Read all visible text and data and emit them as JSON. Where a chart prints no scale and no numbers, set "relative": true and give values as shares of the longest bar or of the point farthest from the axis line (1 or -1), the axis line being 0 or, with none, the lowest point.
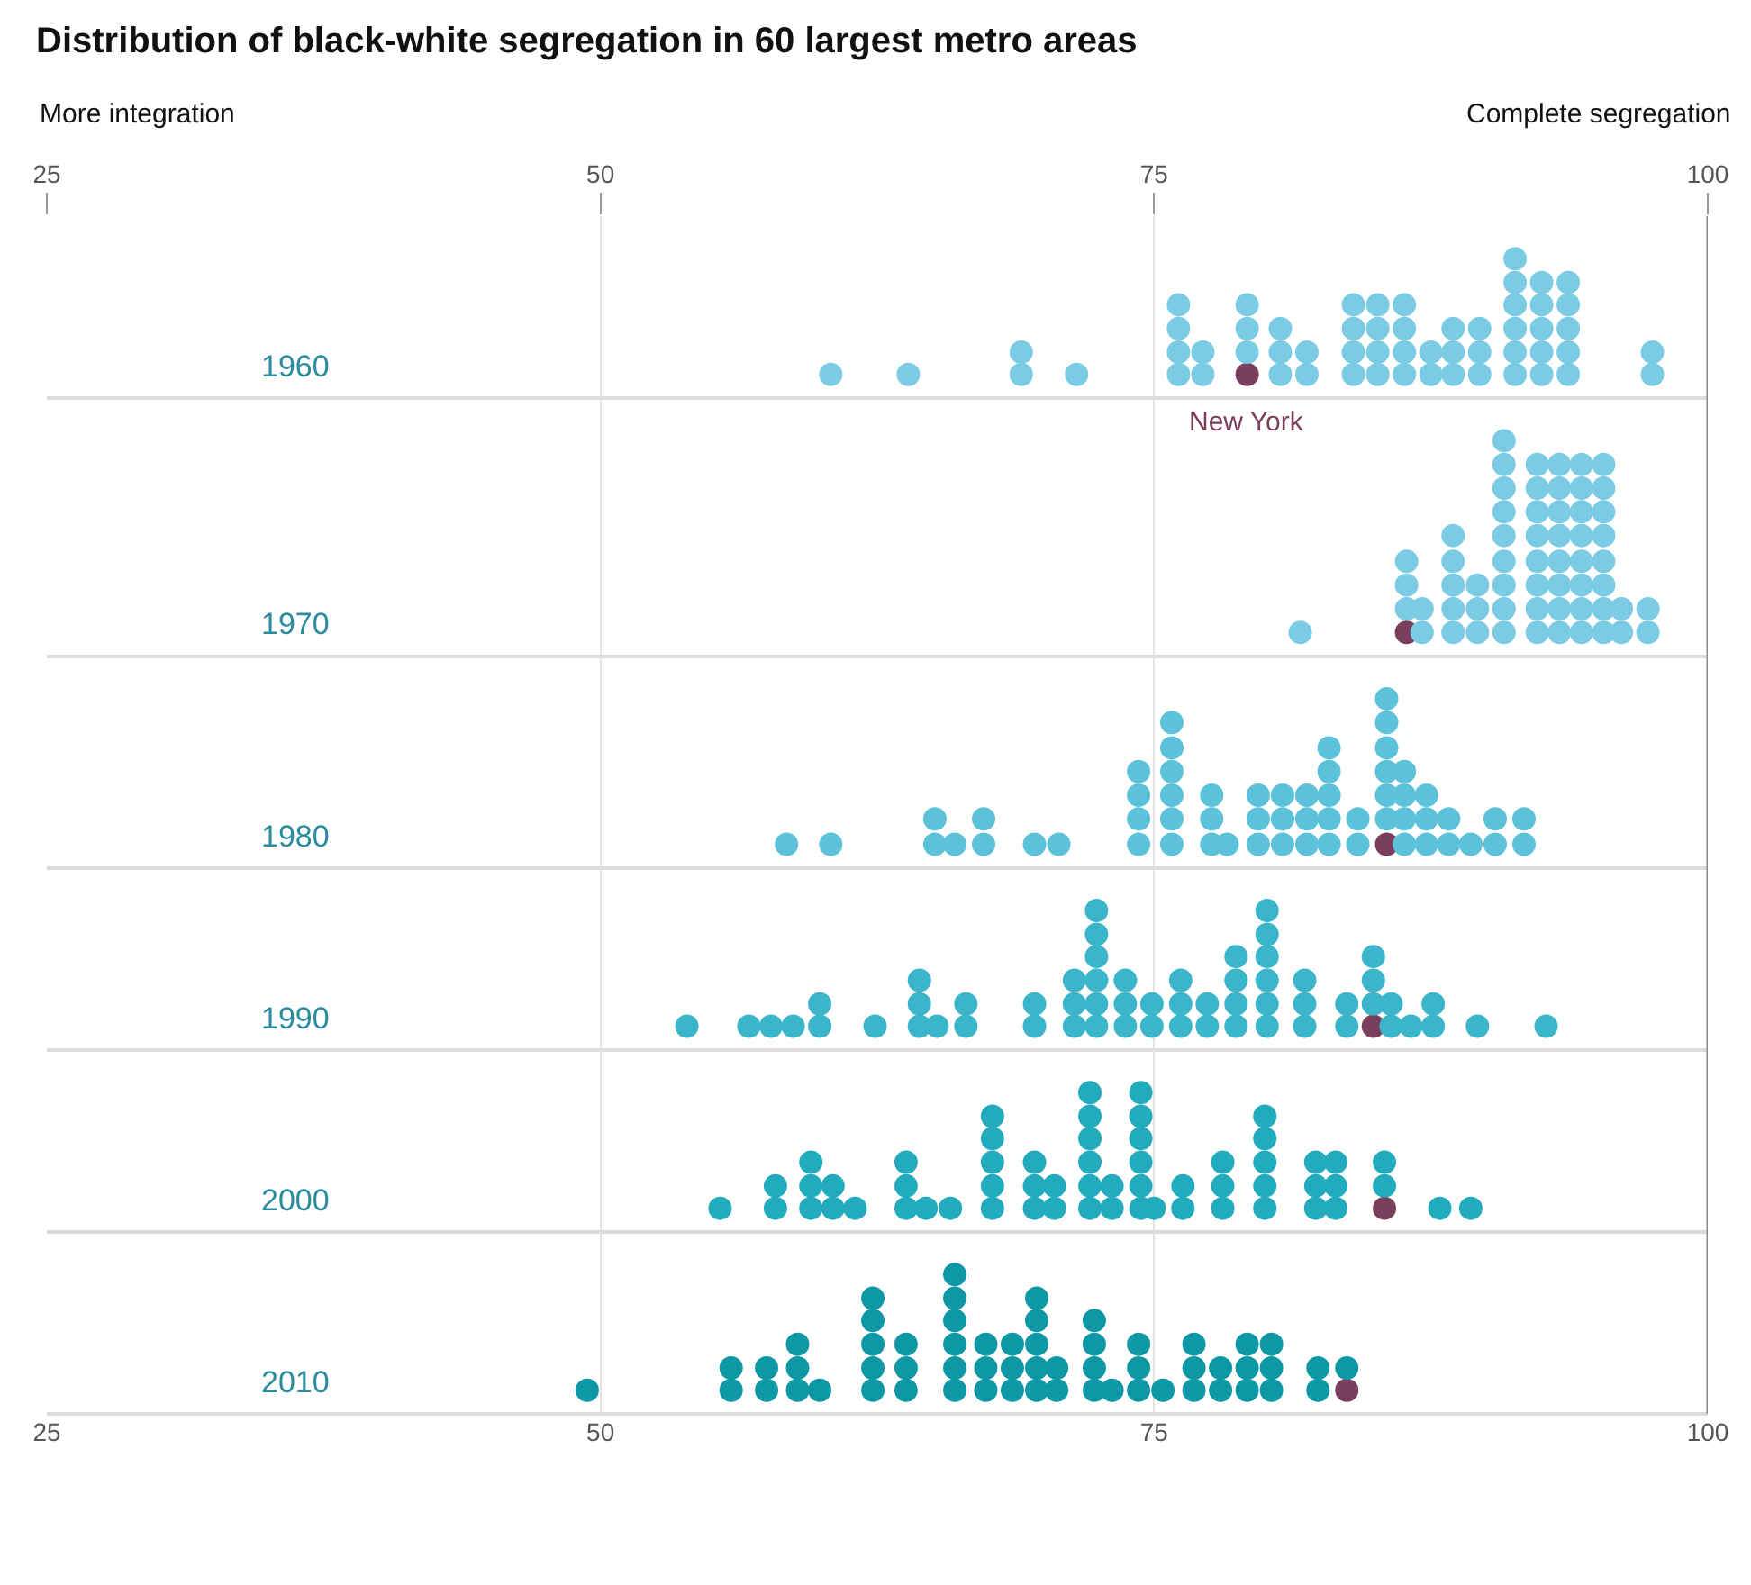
{
  "chart_data": [
    {
      "type": "scatter",
      "title": "Distribution of black-white segregation in 60 largest metro areas",
      "ylabel": "1960",
      "relative": true,
      "xlim": [
        25,
        100
      ],
      "xticks": [
        25,
        50,
        75,
        100
      ],
      "tick_labels": "x",
      "grid": "x",
      "marker": "circle",
      "ref_lines": [
        {
          "axis": "x",
          "value": 100,
          "color": "#8a8a8a"
        }
      ],
      "annotations": [
        "More integration",
        "Complete segregation",
        {
          "text": "New York",
          "x": 79.2,
          "y": 0.17
        }
      ],
      "series": [
        {
          "color": "#7b3f5e",
          "x": [
            79.2
          ],
          "values": [
            0.17
          ]
        },
        {
          "color": "#7ccbe5",
          "x": [
            60.4,
            63.9,
            69.0,
            69.0,
            71.5,
            76.1,
            76.1,
            76.1,
            76.1,
            77.2,
            77.2,
            79.2,
            79.2,
            79.2,
            80.7,
            80.7,
            80.7,
            81.9,
            81.9,
            84.0,
            84.0,
            84.0,
            84.0,
            85.1,
            85.1,
            85.1,
            85.1,
            86.3,
            86.3,
            86.3,
            86.3,
            87.5,
            87.5,
            88.5,
            88.5,
            88.5,
            89.7,
            89.7,
            89.7,
            91.3,
            91.3,
            91.3,
            91.3,
            91.3,
            91.3,
            92.5,
            92.5,
            92.5,
            92.5,
            92.5,
            93.7,
            93.7,
            93.7,
            93.7,
            93.7,
            97.5,
            97.5
          ],
          "values": [
            0.17,
            0.17,
            0.17,
            0.33,
            0.17,
            0.17,
            0.33,
            0.5,
            0.67,
            0.17,
            0.33,
            0.33,
            0.5,
            0.67,
            0.17,
            0.33,
            0.5,
            0.17,
            0.33,
            0.17,
            0.33,
            0.5,
            0.67,
            0.17,
            0.33,
            0.5,
            0.67,
            0.17,
            0.33,
            0.5,
            0.67,
            0.17,
            0.33,
            0.17,
            0.33,
            0.5,
            0.17,
            0.33,
            0.5,
            0.17,
            0.33,
            0.5,
            0.67,
            0.83,
            1,
            0.17,
            0.33,
            0.5,
            0.67,
            0.83,
            0.17,
            0.33,
            0.5,
            0.67,
            0.83,
            0.17,
            0.33
          ]
        }
      ]
    },
    {
      "type": "scatter",
      "ylabel": "1970",
      "relative": true,
      "xlim": [
        25,
        100
      ],
      "xticks": [
        25,
        50,
        75,
        100
      ],
      "tick_labels": false,
      "grid": "x",
      "marker": "circle",
      "ref_lines": [
        {
          "axis": "x",
          "value": 100,
          "color": "#8a8a8a"
        }
      ],
      "series": [
        {
          "color": "#7b3f5e",
          "x": [
            86.4
          ],
          "values": [
            0.11
          ]
        },
        {
          "color": "#7ccbe5",
          "x": [
            81.6,
            86.4,
            86.4,
            86.4,
            87.1,
            87.1,
            88.5,
            88.5,
            88.5,
            88.5,
            88.5,
            89.6,
            89.6,
            89.6,
            90.8,
            90.8,
            90.8,
            90.8,
            90.8,
            90.8,
            90.8,
            90.8,
            90.8,
            92.3,
            92.3,
            92.3,
            92.3,
            92.3,
            92.3,
            92.3,
            92.3,
            93.3,
            93.3,
            93.3,
            93.3,
            93.3,
            93.3,
            93.3,
            93.3,
            94.3,
            94.3,
            94.3,
            94.3,
            94.3,
            94.3,
            94.3,
            94.3,
            95.3,
            95.3,
            95.3,
            95.3,
            95.3,
            95.3,
            95.3,
            95.3,
            96.1,
            96.1,
            97.3,
            97.3
          ],
          "values": [
            0.11,
            0.22,
            0.33,
            0.44,
            0.11,
            0.22,
            0.11,
            0.22,
            0.33,
            0.44,
            0.56,
            0.11,
            0.22,
            0.33,
            0.11,
            0.22,
            0.33,
            0.44,
            0.56,
            0.67,
            0.78,
            0.89,
            1,
            0.11,
            0.22,
            0.33,
            0.44,
            0.56,
            0.67,
            0.78,
            0.89,
            0.11,
            0.22,
            0.33,
            0.44,
            0.56,
            0.67,
            0.78,
            0.89,
            0.11,
            0.22,
            0.33,
            0.44,
            0.56,
            0.67,
            0.78,
            0.89,
            0.11,
            0.22,
            0.33,
            0.44,
            0.56,
            0.67,
            0.78,
            0.89,
            0.11,
            0.22,
            0.11,
            0.22
          ]
        }
      ]
    },
    {
      "type": "scatter",
      "ylabel": "1980",
      "relative": true,
      "xlim": [
        25,
        100
      ],
      "xticks": [
        25,
        50,
        75,
        100
      ],
      "tick_labels": false,
      "grid": "x",
      "marker": "circle",
      "ref_lines": [
        {
          "axis": "x",
          "value": 100,
          "color": "#8a8a8a"
        }
      ],
      "series": [
        {
          "color": "#7b3f5e",
          "x": [
            85.5
          ],
          "values": [
            0.14
          ]
        },
        {
          "color": "#5cc2d9",
          "x": [
            58.4,
            60.4,
            65.1,
            65.1,
            66.0,
            67.3,
            67.3,
            69.6,
            70.7,
            74.3,
            74.3,
            74.3,
            74.3,
            75.8,
            75.8,
            75.8,
            75.8,
            75.8,
            75.8,
            77.6,
            77.6,
            77.6,
            78.3,
            79.7,
            79.7,
            79.7,
            80.8,
            80.8,
            80.8,
            81.9,
            81.9,
            81.9,
            82.9,
            82.9,
            82.9,
            82.9,
            82.9,
            84.2,
            84.2,
            85.5,
            85.5,
            85.5,
            85.5,
            85.5,
            85.5,
            86.3,
            86.3,
            86.3,
            86.3,
            87.3,
            87.3,
            87.3,
            88.3,
            88.3,
            89.3,
            90.4,
            90.4,
            91.7,
            91.7
          ],
          "values": [
            0.14,
            0.14,
            0.14,
            0.29,
            0.14,
            0.14,
            0.29,
            0.14,
            0.14,
            0.14,
            0.29,
            0.43,
            0.57,
            0.14,
            0.29,
            0.43,
            0.57,
            0.71,
            0.86,
            0.14,
            0.29,
            0.43,
            0.14,
            0.14,
            0.29,
            0.43,
            0.14,
            0.29,
            0.43,
            0.14,
            0.29,
            0.43,
            0.14,
            0.29,
            0.43,
            0.57,
            0.71,
            0.14,
            0.29,
            0.29,
            0.43,
            0.57,
            0.71,
            0.86,
            1,
            0.14,
            0.29,
            0.43,
            0.57,
            0.14,
            0.29,
            0.43,
            0.14,
            0.29,
            0.14,
            0.14,
            0.29,
            0.14,
            0.29
          ]
        }
      ]
    },
    {
      "type": "scatter",
      "ylabel": "1990",
      "relative": true,
      "xlim": [
        25,
        100
      ],
      "xticks": [
        25,
        50,
        75,
        100
      ],
      "tick_labels": false,
      "grid": "x",
      "marker": "circle",
      "ref_lines": [
        {
          "axis": "x",
          "value": 100,
          "color": "#8a8a8a"
        }
      ],
      "series": [
        {
          "color": "#7b3f5e",
          "x": [
            84.9
          ],
          "values": [
            0.17
          ]
        },
        {
          "color": "#3ab5c9",
          "x": [
            53.9,
            56.7,
            57.7,
            58.7,
            59.9,
            59.9,
            62.4,
            64.4,
            64.4,
            64.4,
            65.2,
            66.5,
            66.5,
            69.6,
            69.6,
            71.4,
            71.4,
            71.4,
            72.4,
            72.4,
            72.4,
            72.4,
            72.4,
            72.4,
            73.7,
            73.7,
            73.7,
            74.9,
            74.9,
            76.2,
            76.2,
            76.2,
            77.4,
            77.4,
            78.7,
            78.7,
            78.7,
            78.7,
            80.1,
            80.1,
            80.1,
            80.1,
            80.1,
            80.1,
            81.8,
            81.8,
            81.8,
            83.7,
            83.7,
            84.9,
            84.9,
            84.9,
            85.7,
            85.7,
            86.6,
            87.6,
            87.6,
            89.6,
            92.7
          ],
          "values": [
            0.17,
            0.17,
            0.17,
            0.17,
            0.17,
            0.33,
            0.17,
            0.17,
            0.33,
            0.5,
            0.17,
            0.17,
            0.33,
            0.17,
            0.33,
            0.17,
            0.33,
            0.5,
            0.17,
            0.33,
            0.5,
            0.67,
            0.83,
            1,
            0.17,
            0.33,
            0.5,
            0.17,
            0.33,
            0.17,
            0.33,
            0.5,
            0.17,
            0.33,
            0.17,
            0.33,
            0.5,
            0.67,
            0.17,
            0.33,
            0.5,
            0.67,
            0.83,
            1,
            0.17,
            0.33,
            0.5,
            0.17,
            0.33,
            0.33,
            0.5,
            0.67,
            0.17,
            0.33,
            0.17,
            0.17,
            0.33,
            0.17,
            0.17
          ]
        }
      ]
    },
    {
      "type": "scatter",
      "ylabel": "2000",
      "relative": true,
      "xlim": [
        25,
        100
      ],
      "xticks": [
        25,
        50,
        75,
        100
      ],
      "tick_labels": false,
      "grid": "x",
      "marker": "circle",
      "ref_lines": [
        {
          "axis": "x",
          "value": 100,
          "color": "#8a8a8a"
        }
      ],
      "series": [
        {
          "color": "#7b3f5e",
          "x": [
            85.4
          ],
          "values": [
            0.17
          ]
        },
        {
          "color": "#22aabd",
          "x": [
            55.4,
            57.9,
            57.9,
            59.5,
            59.5,
            59.5,
            60.5,
            60.5,
            61.5,
            63.8,
            63.8,
            63.8,
            64.7,
            65.8,
            67.7,
            67.7,
            67.7,
            67.7,
            67.7,
            69.6,
            69.6,
            69.6,
            70.5,
            70.5,
            72.1,
            72.1,
            72.1,
            72.1,
            72.1,
            72.1,
            73.1,
            73.1,
            74.4,
            74.4,
            74.4,
            74.4,
            74.4,
            74.4,
            75.0,
            76.3,
            76.3,
            78.1,
            78.1,
            78.1,
            80.0,
            80.0,
            80.0,
            80.0,
            80.0,
            82.3,
            82.3,
            82.3,
            83.2,
            83.2,
            83.2,
            85.4,
            85.4,
            87.9,
            89.3
          ],
          "values": [
            0.17,
            0.17,
            0.33,
            0.17,
            0.33,
            0.5,
            0.17,
            0.33,
            0.17,
            0.17,
            0.33,
            0.5,
            0.17,
            0.17,
            0.17,
            0.33,
            0.5,
            0.67,
            0.83,
            0.17,
            0.33,
            0.5,
            0.17,
            0.33,
            0.17,
            0.33,
            0.5,
            0.67,
            0.83,
            1,
            0.17,
            0.33,
            0.17,
            0.33,
            0.5,
            0.67,
            0.83,
            1,
            0.17,
            0.17,
            0.33,
            0.17,
            0.33,
            0.5,
            0.17,
            0.33,
            0.5,
            0.67,
            0.83,
            0.17,
            0.33,
            0.5,
            0.17,
            0.33,
            0.5,
            0.33,
            0.5,
            0.17,
            0.17
          ]
        }
      ]
    },
    {
      "type": "scatter",
      "ylabel": "2010",
      "relative": true,
      "xlim": [
        25,
        100
      ],
      "xticks": [
        25,
        50,
        75,
        100
      ],
      "tick_labels": "x",
      "grid": "x",
      "marker": "circle",
      "ref_lines": [
        {
          "axis": "x",
          "value": 100,
          "color": "#8a8a8a"
        }
      ],
      "series": [
        {
          "color": "#7b3f5e",
          "x": [
            83.7
          ],
          "values": [
            0.17
          ]
        },
        {
          "color": "#0e98a6",
          "x": [
            49.4,
            55.9,
            55.9,
            57.5,
            57.5,
            58.9,
            58.9,
            58.9,
            59.9,
            62.3,
            62.3,
            62.3,
            62.3,
            62.3,
            63.8,
            63.8,
            63.8,
            66.0,
            66.0,
            66.0,
            66.0,
            66.0,
            66.0,
            67.4,
            67.4,
            67.4,
            68.6,
            68.6,
            68.6,
            69.7,
            69.7,
            69.7,
            69.7,
            69.7,
            70.6,
            70.6,
            72.3,
            72.3,
            72.3,
            72.3,
            73.1,
            74.3,
            74.3,
            74.3,
            75.4,
            76.8,
            76.8,
            76.8,
            78.0,
            78.0,
            79.2,
            79.2,
            79.2,
            80.3,
            80.3,
            80.3,
            82.4,
            82.4,
            83.7
          ],
          "values": [
            0.17,
            0.17,
            0.33,
            0.17,
            0.33,
            0.17,
            0.33,
            0.5,
            0.17,
            0.17,
            0.33,
            0.5,
            0.67,
            0.83,
            0.17,
            0.33,
            0.5,
            0.17,
            0.33,
            0.5,
            0.67,
            0.83,
            1,
            0.17,
            0.33,
            0.5,
            0.17,
            0.33,
            0.5,
            0.17,
            0.33,
            0.5,
            0.67,
            0.83,
            0.17,
            0.33,
            0.17,
            0.33,
            0.5,
            0.67,
            0.17,
            0.17,
            0.33,
            0.5,
            0.17,
            0.17,
            0.33,
            0.5,
            0.17,
            0.33,
            0.17,
            0.33,
            0.5,
            0.17,
            0.33,
            0.5,
            0.17,
            0.33,
            0.33
          ]
        }
      ]
    }
  ]
}
